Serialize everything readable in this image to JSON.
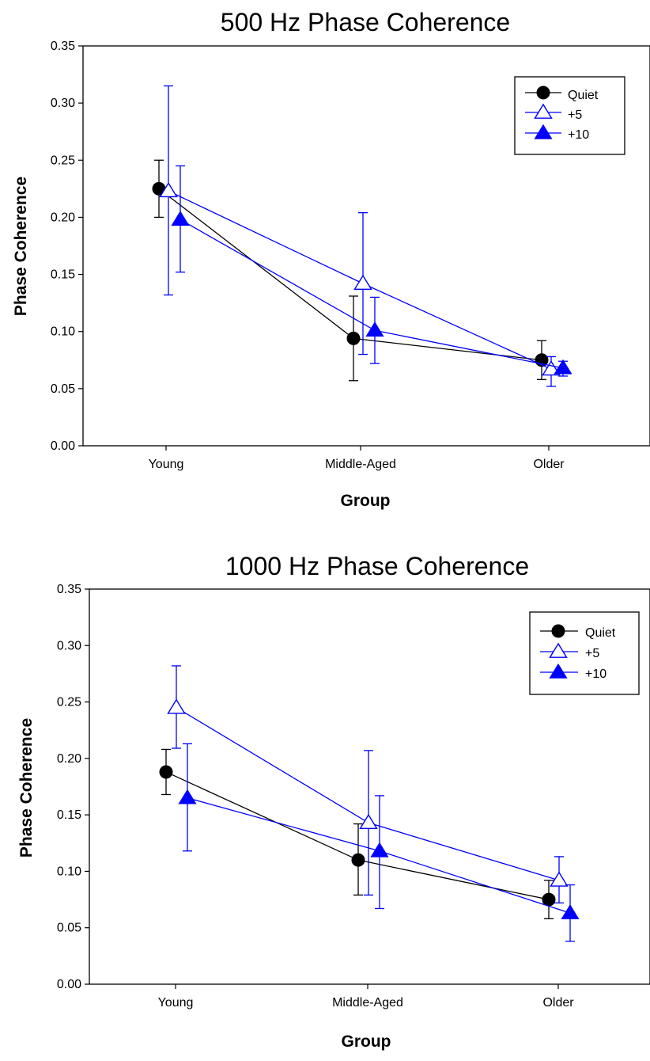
{
  "chart_data": [
    {
      "type": "line",
      "title": "500 Hz Phase Coherence",
      "xlabel": "Group",
      "ylabel": "Phase Coherence",
      "categories": [
        "Young",
        "Middle-Aged",
        "Older"
      ],
      "ylim": [
        0,
        0.35
      ],
      "yticks": [
        "0.00",
        "0.05",
        "0.10",
        "0.15",
        "0.20",
        "0.25",
        "0.30",
        "0.35"
      ],
      "grid": false,
      "legend_position": "top-right",
      "series": [
        {
          "name": "Quiet",
          "color": "#000000",
          "marker": "filled-circle",
          "values": [
            0.225,
            0.094,
            0.075
          ],
          "err_low": [
            0.2,
            0.057,
            0.058
          ],
          "err_high": [
            0.25,
            0.131,
            0.092
          ]
        },
        {
          "name": "+5",
          "color": "#0000ff",
          "marker": "open-triangle",
          "values": [
            0.223,
            0.142,
            0.067
          ],
          "err_low": [
            0.132,
            0.08,
            0.052
          ],
          "err_high": [
            0.315,
            0.204,
            0.078
          ]
        },
        {
          "name": "+10",
          "color": "#0000ff",
          "marker": "filled-triangle",
          "values": [
            0.198,
            0.101,
            0.068
          ],
          "err_low": [
            0.152,
            0.072,
            0.061
          ],
          "err_high": [
            0.245,
            0.13,
            0.074
          ]
        }
      ]
    },
    {
      "type": "line",
      "title": "1000 Hz Phase Coherence",
      "xlabel": "Group",
      "ylabel": "Phase Coherence",
      "categories": [
        "Young",
        "Middle-Aged",
        "Older"
      ],
      "ylim": [
        0,
        0.35
      ],
      "yticks": [
        "0.00",
        "0.05",
        "0.10",
        "0.15",
        "0.20",
        "0.25",
        "0.30",
        "0.35"
      ],
      "grid": false,
      "legend_position": "top-right",
      "series": [
        {
          "name": "Quiet",
          "color": "#000000",
          "marker": "filled-circle",
          "values": [
            0.188,
            0.11,
            0.075
          ],
          "err_low": [
            0.168,
            0.079,
            0.058
          ],
          "err_high": [
            0.208,
            0.142,
            0.092
          ]
        },
        {
          "name": "+5",
          "color": "#0000ff",
          "marker": "open-triangle",
          "values": [
            0.245,
            0.143,
            0.092
          ],
          "err_low": [
            0.209,
            0.079,
            0.072
          ],
          "err_high": [
            0.282,
            0.207,
            0.113
          ]
        },
        {
          "name": "+10",
          "color": "#0000ff",
          "marker": "filled-triangle",
          "values": [
            0.165,
            0.118,
            0.063
          ],
          "err_low": [
            0.118,
            0.067,
            0.038
          ],
          "err_high": [
            0.213,
            0.167,
            0.088
          ]
        }
      ]
    }
  ]
}
